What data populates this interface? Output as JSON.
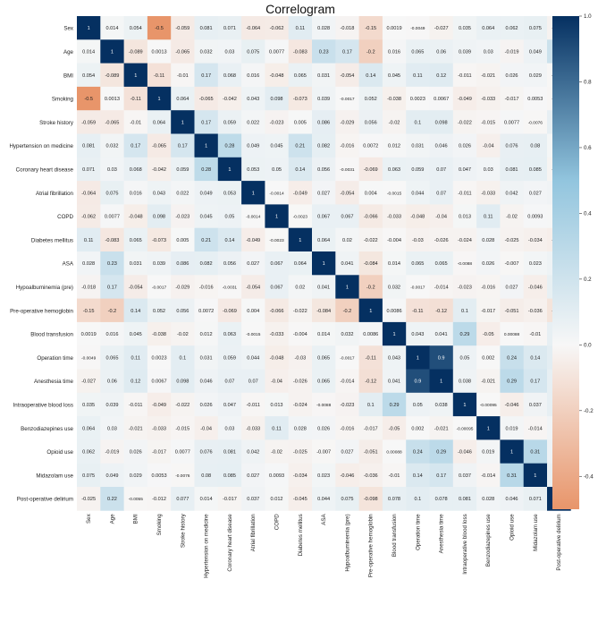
{
  "chart_data": {
    "type": "heatmap",
    "title": "Correlogram",
    "variables": [
      "Sex",
      "Age",
      "BMI",
      "Smoking",
      "Stroke history",
      "Hypertension on medicine",
      "Coronary heart disease",
      "Atrial fibrillation",
      "COPD",
      "Diabetes mellitus",
      "ASA",
      "Hypoalbuminemia (pre)",
      "Pre-operative hemoglobin",
      "Blood transfusion",
      "Operation time",
      "Anesthesia time",
      "Intraoperative blood loss",
      "Benzodiazepines use",
      "Opioid use",
      "Midazolam use",
      "Post-operative delirium"
    ],
    "cells": [
      [
        "1",
        "0.014",
        "0.054",
        "-0.5",
        "-0.059",
        "0.081",
        "0.071",
        "-0.064",
        "-0.062",
        "0.11",
        "0.028",
        "-0.018",
        "-0.15",
        "0.0019",
        "-0.0049",
        "-0.027",
        "0.035",
        "0.064",
        "0.062",
        "0.075",
        "-0.025"
      ],
      [
        "0.014",
        "1",
        "-0.089",
        "0.0013",
        "-0.065",
        "0.032",
        "0.03",
        "0.075",
        "0.0077",
        "-0.083",
        "0.23",
        "0.17",
        "-0.2",
        "0.016",
        "0.065",
        "0.06",
        "0.039",
        "0.03",
        "-0.019",
        "0.049",
        "0.22"
      ],
      [
        "0.054",
        "-0.089",
        "1",
        "-0.11",
        "-0.01",
        "0.17",
        "0.068",
        "0.016",
        "-0.048",
        "0.065",
        "0.031",
        "-0.054",
        "0.14",
        "0.045",
        "0.11",
        "0.12",
        "-0.011",
        "-0.021",
        "0.026",
        "0.029",
        "-0.0055"
      ],
      [
        "-0.5",
        "0.0013",
        "-0.11",
        "1",
        "0.064",
        "-0.065",
        "-0.042",
        "0.043",
        "0.098",
        "-0.073",
        "0.039",
        "-0.0017",
        "0.052",
        "-0.038",
        "0.0023",
        "0.0067",
        "-0.049",
        "-0.033",
        "-0.017",
        "0.0053",
        "-0.012"
      ],
      [
        "-0.059",
        "-0.065",
        "-0.01",
        "0.064",
        "1",
        "0.17",
        "0.059",
        "0.022",
        "-0.023",
        "0.005",
        "0.086",
        "-0.029",
        "0.056",
        "-0.02",
        "0.1",
        "0.098",
        "-0.022",
        "-0.015",
        "0.0077",
        "-0.0076",
        "0.077"
      ],
      [
        "0.081",
        "0.032",
        "0.17",
        "-0.065",
        "0.17",
        "1",
        "0.28",
        "0.049",
        "0.045",
        "0.21",
        "0.082",
        "-0.016",
        "0.0072",
        "0.012",
        "0.031",
        "0.046",
        "0.026",
        "-0.04",
        "0.076",
        "0.08",
        "0.014"
      ],
      [
        "0.071",
        "0.03",
        "0.068",
        "-0.042",
        "0.059",
        "0.28",
        "1",
        "0.053",
        "0.05",
        "0.14",
        "0.056",
        "-0.0031",
        "-0.069",
        "0.063",
        "0.059",
        "0.07",
        "0.047",
        "0.03",
        "0.081",
        "0.085",
        "-0.017"
      ],
      [
        "-0.064",
        "0.075",
        "0.016",
        "0.043",
        "0.022",
        "0.049",
        "0.053",
        "1",
        "-0.0014",
        "-0.049",
        "0.027",
        "-0.054",
        "0.004",
        "-0.0015",
        "0.044",
        "0.07",
        "-0.011",
        "-0.033",
        "0.042",
        "0.027",
        "0.037"
      ],
      [
        "-0.062",
        "0.0077",
        "-0.048",
        "0.098",
        "-0.023",
        "0.045",
        "0.05",
        "-0.0014",
        "1",
        "-0.0023",
        "0.067",
        "0.067",
        "-0.066",
        "-0.033",
        "-0.048",
        "-0.04",
        "0.013",
        "0.11",
        "-0.02",
        "0.0093",
        "0.012"
      ],
      [
        "0.11",
        "-0.083",
        "0.065",
        "-0.073",
        "0.005",
        "0.21",
        "0.14",
        "-0.049",
        "-0.0023",
        "1",
        "0.064",
        "0.02",
        "-0.022",
        "-0.004",
        "-0.03",
        "-0.026",
        "-0.024",
        "0.028",
        "-0.025",
        "-0.034",
        "-0.045"
      ],
      [
        "0.028",
        "0.23",
        "0.031",
        "0.039",
        "0.086",
        "0.082",
        "0.056",
        "0.027",
        "0.067",
        "0.064",
        "1",
        "0.041",
        "-0.084",
        "0.014",
        "0.065",
        "0.065",
        "-0.0088",
        "0.026",
        "-0.007",
        "0.023",
        "0.044"
      ],
      [
        "-0.018",
        "0.17",
        "-0.054",
        "-0.0017",
        "-0.029",
        "-0.016",
        "-0.0031",
        "-0.054",
        "0.067",
        "0.02",
        "0.041",
        "1",
        "-0.2",
        "0.032",
        "-0.0017",
        "-0.014",
        "-0.023",
        "-0.016",
        "0.027",
        "-0.046",
        "0.075"
      ],
      [
        "-0.15",
        "-0.2",
        "0.14",
        "0.052",
        "0.056",
        "0.0072",
        "-0.069",
        "0.004",
        "-0.066",
        "-0.022",
        "-0.084",
        "-0.2",
        "1",
        "0.0086",
        "-0.11",
        "-0.12",
        "0.1",
        "-0.017",
        "-0.051",
        "-0.036",
        "-0.098"
      ],
      [
        "0.0019",
        "0.016",
        "0.045",
        "-0.038",
        "-0.02",
        "0.012",
        "0.063",
        "-0.0015",
        "-0.033",
        "-0.004",
        "0.014",
        "0.032",
        "0.0086",
        "1",
        "0.043",
        "0.041",
        "0.29",
        "-0.05",
        "0.00088",
        "-0.01",
        "0.078"
      ],
      [
        "-0.0049",
        "0.065",
        "0.11",
        "0.0023",
        "0.1",
        "0.031",
        "0.059",
        "0.044",
        "-0.048",
        "-0.03",
        "0.065",
        "-0.0017",
        "-0.11",
        "0.043",
        "1",
        "0.9",
        "0.05",
        "0.002",
        "0.24",
        "0.14",
        "0.1"
      ],
      [
        "-0.027",
        "0.06",
        "0.12",
        "0.0067",
        "0.098",
        "0.046",
        "0.07",
        "0.07",
        "-0.04",
        "-0.026",
        "0.065",
        "-0.014",
        "-0.12",
        "0.041",
        "0.9",
        "1",
        "0.038",
        "-0.021",
        "0.29",
        "0.17",
        "0.078"
      ],
      [
        "0.035",
        "0.039",
        "-0.011",
        "-0.049",
        "-0.022",
        "0.026",
        "0.047",
        "-0.011",
        "0.013",
        "-0.024",
        "-0.0088",
        "-0.023",
        "0.1",
        "0.29",
        "0.05",
        "0.038",
        "1",
        "-0.00095",
        "-0.046",
        "0.037",
        "0.081"
      ],
      [
        "0.064",
        "0.03",
        "-0.021",
        "-0.033",
        "-0.015",
        "-0.04",
        "0.03",
        "-0.033",
        "0.11",
        "0.028",
        "0.026",
        "-0.016",
        "-0.017",
        "-0.05",
        "0.002",
        "-0.021",
        "-0.00095",
        "1",
        "0.019",
        "-0.014",
        "0.028"
      ],
      [
        "0.062",
        "-0.019",
        "0.026",
        "-0.017",
        "0.0077",
        "0.076",
        "0.081",
        "0.042",
        "-0.02",
        "-0.025",
        "-0.007",
        "0.027",
        "-0.051",
        "0.00088",
        "0.24",
        "0.29",
        "-0.046",
        "0.019",
        "1",
        "0.31",
        "0.046"
      ],
      [
        "0.075",
        "0.049",
        "0.029",
        "0.0053",
        "-0.0076",
        "0.08",
        "0.085",
        "0.027",
        "0.0093",
        "-0.034",
        "0.023",
        "-0.046",
        "-0.036",
        "-0.01",
        "0.14",
        "0.17",
        "0.037",
        "-0.014",
        "0.31",
        "1",
        "0.071"
      ],
      [
        "-0.025",
        "0.22",
        "-0.0055",
        "-0.012",
        "0.077",
        "0.014",
        "-0.017",
        "0.037",
        "0.012",
        "-0.045",
        "0.044",
        "0.075",
        "-0.098",
        "0.078",
        "0.1",
        "0.078",
        "0.081",
        "0.028",
        "0.046",
        "0.071",
        "1"
      ]
    ],
    "colorbar": {
      "ticks": [
        "1.0",
        "0.8",
        "0.6",
        "0.4",
        "0.2",
        "0.0",
        "-0.2",
        "-0.4"
      ],
      "tick_values": [
        1.0,
        0.8,
        0.6,
        0.4,
        0.2,
        0.0,
        -0.2,
        -0.4
      ],
      "range": [
        -0.5,
        1.0
      ],
      "colors": {
        "negative": "#e8956a",
        "neutral": "#f7f7f7",
        "positive": "#053061"
      }
    },
    "grid": false,
    "legend": "right"
  }
}
